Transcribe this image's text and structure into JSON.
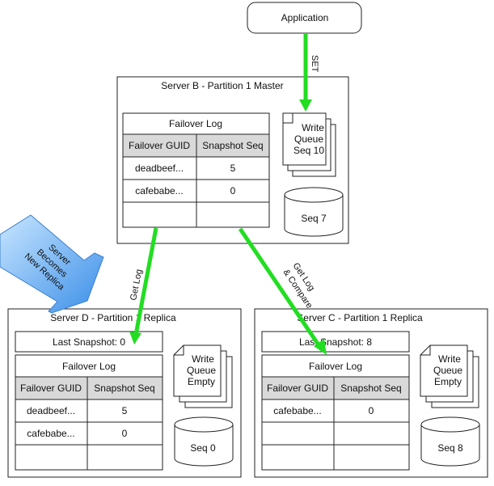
{
  "application": {
    "label": "Application"
  },
  "arrows": {
    "set": "SET",
    "get_log": "Get Log",
    "get_log_compare_1": "Get Log",
    "get_log_compare_2": "& Compare"
  },
  "callout": {
    "line1": "Server",
    "line2": "Becomes",
    "line3": "New Replica"
  },
  "server_b": {
    "title": "Server B - Partition 1 Master",
    "failover_log": {
      "title": "Failover Log",
      "headers": [
        "Failover GUID",
        "Snapshot Seq"
      ],
      "rows": [
        [
          "deadbeef...",
          "5"
        ],
        [
          "cafebabe...",
          "0"
        ],
        [
          "",
          ""
        ]
      ]
    },
    "write_queue": {
      "line1": "Write",
      "line2": "Queue",
      "line3": "Seq 10"
    },
    "storage": "Seq 7"
  },
  "server_d": {
    "title": "Server D - Partition 1 Replica",
    "last_snapshot": "Last Snapshot: 0",
    "failover_log": {
      "title": "Failover Log",
      "headers": [
        "Failover GUID",
        "Snapshot Seq"
      ],
      "rows": [
        [
          "deadbeef...",
          "5"
        ],
        [
          "cafebabe...",
          "0"
        ],
        [
          "",
          ""
        ]
      ]
    },
    "write_queue": {
      "line1": "Write",
      "line2": "Queue",
      "line3": "Empty"
    },
    "storage": "Seq 0"
  },
  "server_c": {
    "title": "Server C - Partition 1 Replica",
    "last_snapshot": "Last Snapshot: 8",
    "failover_log": {
      "title": "Failover Log",
      "headers": [
        "Failover GUID",
        "Snapshot Seq"
      ],
      "rows": [
        [
          "cafebabe...",
          "0"
        ],
        [
          "",
          ""
        ],
        [
          "",
          ""
        ]
      ]
    },
    "write_queue": {
      "line1": "Write",
      "line2": "Queue",
      "line3": "Empty"
    },
    "storage": "Seq 8"
  },
  "colors": {
    "arrow": "#22dd22",
    "callout_top": "#bfe0ff",
    "callout_bottom": "#3a8ee8",
    "header_fill": "#d9d9d9"
  }
}
